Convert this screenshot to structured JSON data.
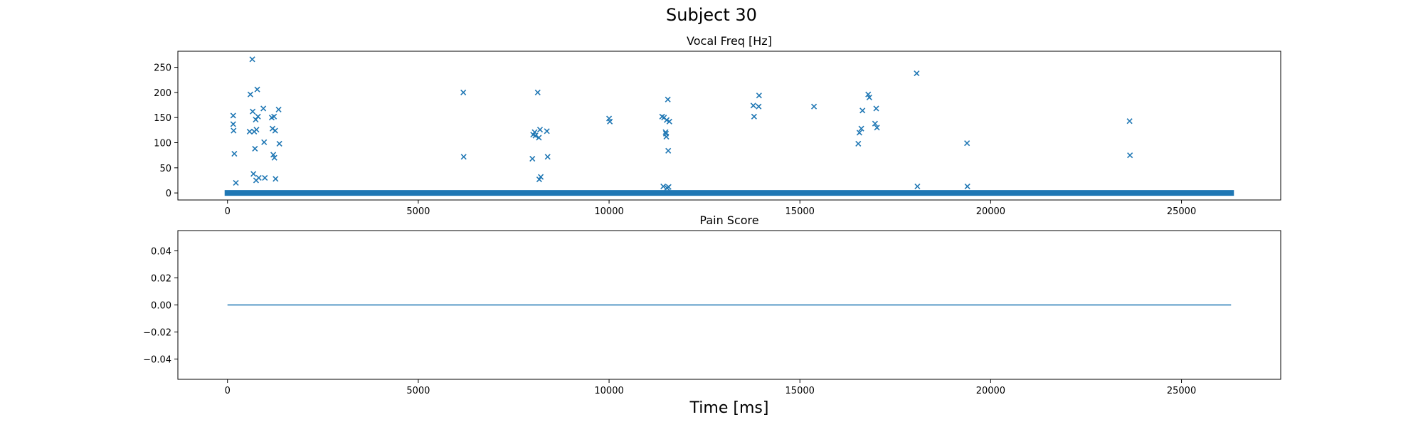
{
  "figure": {
    "title": "Subject 30",
    "xlabel": "Time [ms]"
  },
  "colors": {
    "series": "#1f77b4",
    "axes": "#000000",
    "background": "#ffffff"
  },
  "chart_data": [
    {
      "type": "scatter",
      "title": "Vocal Freq [Hz]",
      "xlabel": "",
      "ylabel": "",
      "xlim": [
        -1300,
        27600
      ],
      "ylim": [
        -14,
        282
      ],
      "xticks": [
        0,
        5000,
        10000,
        15000,
        20000,
        25000
      ],
      "yticks": [
        0,
        50,
        100,
        150,
        200,
        250
      ],
      "marker": "x",
      "grid": false,
      "baseline": {
        "y": 0,
        "x_start": 0,
        "x_end": 26300,
        "note_dense_zero_values": true
      },
      "points": [
        [
          150,
          154
        ],
        [
          150,
          137
        ],
        [
          160,
          124
        ],
        [
          180,
          78
        ],
        [
          220,
          20
        ],
        [
          580,
          122
        ],
        [
          600,
          196
        ],
        [
          660,
          162
        ],
        [
          680,
          38
        ],
        [
          700,
          122
        ],
        [
          720,
          88
        ],
        [
          740,
          146
        ],
        [
          760,
          126
        ],
        [
          780,
          206
        ],
        [
          800,
          152
        ],
        [
          820,
          30
        ],
        [
          650,
          266
        ],
        [
          750,
          25
        ],
        [
          940,
          168
        ],
        [
          960,
          101
        ],
        [
          980,
          30
        ],
        [
          1160,
          150
        ],
        [
          1180,
          128
        ],
        [
          1200,
          76
        ],
        [
          1220,
          152
        ],
        [
          1230,
          70
        ],
        [
          1250,
          124
        ],
        [
          1260,
          28
        ],
        [
          1340,
          166
        ],
        [
          1360,
          98
        ],
        [
          6180,
          200
        ],
        [
          6190,
          72
        ],
        [
          7990,
          68
        ],
        [
          8010,
          116
        ],
        [
          8050,
          121
        ],
        [
          8070,
          114
        ],
        [
          8130,
          200
        ],
        [
          8160,
          110
        ],
        [
          8170,
          27
        ],
        [
          8190,
          126
        ],
        [
          8210,
          32
        ],
        [
          8370,
          123
        ],
        [
          8390,
          72
        ],
        [
          10000,
          148
        ],
        [
          10020,
          142
        ],
        [
          11390,
          152
        ],
        [
          11420,
          13
        ],
        [
          11440,
          150
        ],
        [
          11480,
          121
        ],
        [
          11490,
          118
        ],
        [
          11500,
          112
        ],
        [
          11510,
          145
        ],
        [
          11520,
          10
        ],
        [
          11540,
          186
        ],
        [
          11550,
          84
        ],
        [
          11560,
          12
        ],
        [
          11580,
          142
        ],
        [
          13780,
          174
        ],
        [
          13800,
          152
        ],
        [
          13920,
          172
        ],
        [
          13930,
          194
        ],
        [
          15370,
          172
        ],
        [
          16530,
          98
        ],
        [
          16560,
          120
        ],
        [
          16610,
          128
        ],
        [
          16640,
          164
        ],
        [
          16790,
          196
        ],
        [
          16820,
          190
        ],
        [
          16970,
          138
        ],
        [
          17000,
          168
        ],
        [
          17020,
          130
        ],
        [
          18060,
          238
        ],
        [
          18080,
          13
        ],
        [
          19380,
          99
        ],
        [
          19390,
          13
        ],
        [
          23640,
          143
        ],
        [
          23650,
          75
        ]
      ]
    },
    {
      "type": "line",
      "title": "Pain Score",
      "xlabel": "Time [ms]",
      "ylabel": "",
      "xlim": [
        -1300,
        27600
      ],
      "ylim": [
        -0.055,
        0.055
      ],
      "xticks": [
        0,
        5000,
        10000,
        15000,
        20000,
        25000
      ],
      "yticks": [
        -0.04,
        -0.02,
        0.0,
        0.02,
        0.04
      ],
      "ytick_labels": [
        "−0.04",
        "−0.02",
        "0.00",
        "0.02",
        "0.04"
      ],
      "grid": false,
      "series": [
        {
          "x": [
            0,
            26300
          ],
          "y": [
            0,
            0
          ]
        }
      ]
    }
  ]
}
